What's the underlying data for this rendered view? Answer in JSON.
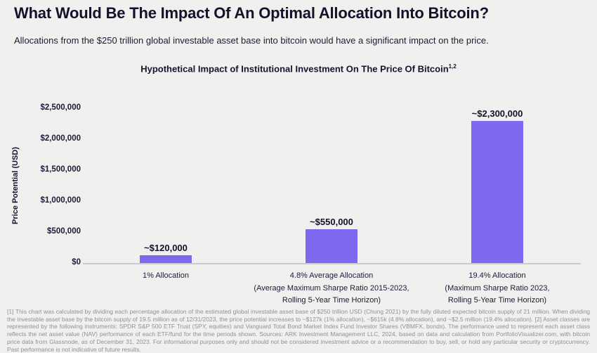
{
  "page": {
    "title": "What Would Be The Impact Of An Optimal Allocation Into Bitcoin?",
    "subtitle": "Allocations from the $250 trillion global investable asset base into bitcoin would have a significant impact on the price."
  },
  "chart_data": {
    "type": "bar",
    "title_text": "Hypothetical Impact of Institutional Investment On The Price Of Bitcoin",
    "title_superscript": "1,2",
    "ylabel": "Price Potential (USD)",
    "xlabel": "",
    "ylim": [
      0,
      2500000
    ],
    "grid": false,
    "legend": false,
    "bar_color": "#7C69EF",
    "categories": [
      "1% Allocation",
      "4.8% Average Allocation (Average Maximum Sharpe Ratio 2015-2023, Rolling 5-Year Time Horizon)",
      "19.4% Allocation (Maximum Sharpe Ratio 2023, Rolling 5-Year Time Horizon)"
    ],
    "values": [
      120000,
      550000,
      2300000
    ],
    "y_ticks": [
      {
        "value": 0,
        "label": "$0"
      },
      {
        "value": 500000,
        "label": "$500,000"
      },
      {
        "value": 1000000,
        "label": "$1,000,000"
      },
      {
        "value": 1500000,
        "label": "$1,500,000"
      },
      {
        "value": 2000000,
        "label": "$2,000,000"
      },
      {
        "value": 2500000,
        "label": "$2,500,000"
      }
    ],
    "bars": [
      {
        "value": 120000,
        "label": "~$120,000",
        "category_lines": [
          "1% Allocation"
        ]
      },
      {
        "value": 550000,
        "label": "~$550,000",
        "category_lines": [
          "4.8% Average Allocation",
          "(Average Maximum Sharpe Ratio 2015-2023,",
          "Rolling 5-Year Time Horizon)"
        ]
      },
      {
        "value": 2300000,
        "label": "~$2,300,000",
        "category_lines": [
          "19.4% Allocation",
          "(Maximum Sharpe Ratio 2023,",
          "Rolling 5-Year Time Horizon)"
        ]
      }
    ]
  },
  "footnote": "[1] This chart was calculated by dividing each percentage allocation of the estimated global investable asset base of $250 trillion USD (Chung 2021) by the fully diluted expected bitcoin supply of 21 million. When dividing the investable asset base by the bitcoin supply of 19.5 million as of 12/31/2023, the price potential increases to ~$127k (1% allocation), ~$615k (4.8% allocation), and ~$2.5 million (19.4% allocation). [2] Asset classes are represented by the following instruments: SPDR S&P 500 ETF Trust (SPY, equities) and Vanguard Total Bond Market Index Fund Investor Shares (VBMFX, bonds). The performance used to represent each asset class reflects the net asset value (NAV) performance of each ETF/fund for the time periods shown. Sources: ARK Investment Management LLC, 2024, based on data and calculation from PortfolioVisualizer.com, with bitcoin price data from Glassnode, as of December 31, 2023. For informational purposes only and should not be considered investment advice or a recommendation to buy, sell, or hold any particular security or cryptocurrency. Past performance is not indicative of future results.",
  "colors": {
    "background": "#F0F0EE",
    "text_dark": "#14142E",
    "bar": "#7C69EF",
    "axis_line": "#C9C9D3",
    "footnote_gray": "#90909A"
  }
}
